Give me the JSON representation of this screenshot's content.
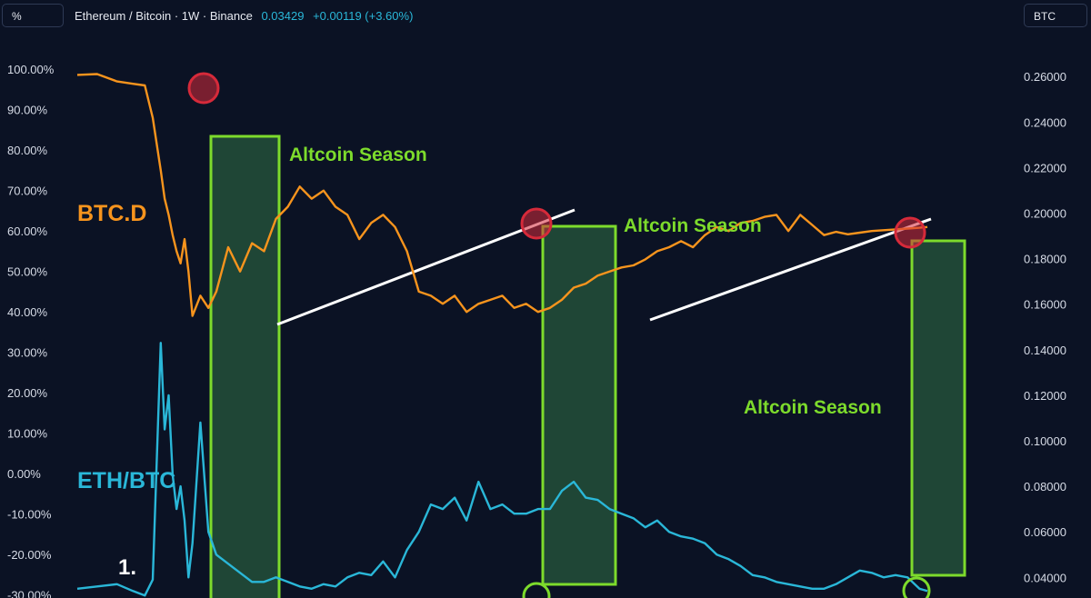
{
  "header": {
    "left_scale_button": "%",
    "right_scale_button": "BTC",
    "symbol_title": "Ethereum / Bitcoin · 1W · Binance",
    "last_price": "0.03429",
    "change": "+0.00119 (+3.60%)"
  },
  "colors": {
    "background": "#0b1224",
    "btc_d": "#f7941d",
    "eth_btc": "#2ab7d8",
    "season_fill": "#23503a",
    "season_border": "#7ddb2c",
    "marker_red": "#d62a3a",
    "marker_green": "#7ddb2c",
    "trendline": "#ffffff",
    "label_green": "#7ddb2c"
  },
  "annotations": {
    "btc_d_label": "BTC.D",
    "eth_btc_label": "ETH/BTC",
    "altcoin_season_1": "Altcoin Season",
    "altcoin_season_2": "Altcoin Season",
    "altcoin_season_3": "Altcoin Season",
    "point_label": "1."
  },
  "chart_data": {
    "type": "line",
    "left_axis": {
      "ticks": [
        "100.00%",
        "90.00%",
        "80.00%",
        "70.00%",
        "60.00%",
        "50.00%",
        "40.00%",
        "30.00%",
        "20.00%",
        "10.00%",
        "0.00%",
        "-10.00%",
        "-20.00%",
        "-30.00%"
      ],
      "range": [
        -30,
        100
      ]
    },
    "right_axis": {
      "ticks": [
        "0.26000",
        "0.24000",
        "0.22000",
        "0.20000",
        "0.18000",
        "0.16000",
        "0.14000",
        "0.12000",
        "0.10000",
        "0.08000",
        "0.06000",
        "0.04000"
      ],
      "range": [
        0.04,
        0.26
      ]
    },
    "series": [
      {
        "name": "BTC.D",
        "axis": "left",
        "x": [
          0,
          5,
          10,
          14,
          17,
          19,
          21,
          22,
          23,
          24,
          25,
          26,
          27,
          28,
          29,
          31,
          33,
          35,
          38,
          41,
          44,
          47,
          50,
          53,
          56,
          59,
          62,
          65,
          68,
          71,
          74,
          77,
          80,
          83,
          86,
          89,
          92,
          95,
          98,
          101,
          104,
          107,
          110,
          113,
          116,
          119,
          122,
          125,
          128,
          131,
          134,
          137,
          140,
          143,
          146,
          149,
          152,
          155,
          158,
          161,
          164,
          167,
          170,
          173,
          176,
          179,
          182,
          185,
          188,
          191,
          194,
          197,
          200,
          203,
          206,
          209,
          212,
          214
        ],
        "values": [
          98.6,
          98.8,
          97.0,
          96.4,
          96.0,
          88.0,
          75.0,
          68.0,
          64.0,
          59.0,
          55.0,
          52.0,
          58.0,
          50.0,
          39.0,
          44.0,
          41.0,
          45.0,
          56.0,
          50.0,
          57.0,
          55.0,
          63.0,
          66.0,
          71.0,
          68.0,
          70.0,
          66.0,
          64.0,
          58.0,
          62.0,
          64.0,
          61.0,
          55.0,
          45.0,
          44.0,
          42.0,
          44.0,
          40.0,
          42.0,
          43.0,
          44.0,
          41.0,
          42.0,
          40.0,
          41.0,
          43.0,
          46.0,
          47.0,
          49.0,
          50.0,
          51.0,
          51.5,
          53.0,
          55.0,
          56.0,
          57.5,
          56.0,
          59.0,
          61.0,
          60.0,
          62.0,
          62.5,
          63.5,
          64.0,
          60.0,
          64.0,
          61.5,
          59.0,
          59.8,
          59.2,
          59.6,
          60.0,
          60.2,
          60.4,
          60.6,
          60.8,
          61.0
        ]
      },
      {
        "name": "ETH/BTC",
        "axis": "right",
        "x": [
          0,
          5,
          10,
          14,
          17,
          19,
          21,
          22,
          23,
          24,
          25,
          26,
          27,
          28,
          29,
          31,
          33,
          35,
          38,
          41,
          44,
          47,
          50,
          53,
          56,
          59,
          62,
          65,
          68,
          71,
          74,
          77,
          80,
          83,
          86,
          89,
          92,
          95,
          98,
          101,
          104,
          107,
          110,
          113,
          116,
          119,
          122,
          125,
          128,
          131,
          134,
          137,
          140,
          143,
          146,
          149,
          152,
          155,
          158,
          161,
          164,
          167,
          170,
          173,
          176,
          179,
          182,
          185,
          188,
          191,
          194,
          197,
          200,
          203,
          206,
          209,
          212,
          214
        ],
        "values": [
          0.035,
          0.036,
          0.037,
          0.034,
          0.032,
          0.039,
          0.143,
          0.105,
          0.12,
          0.085,
          0.07,
          0.08,
          0.065,
          0.04,
          0.055,
          0.108,
          0.06,
          0.05,
          0.046,
          0.042,
          0.038,
          0.038,
          0.04,
          0.038,
          0.036,
          0.035,
          0.037,
          0.036,
          0.04,
          0.042,
          0.041,
          0.047,
          0.04,
          0.052,
          0.06,
          0.072,
          0.07,
          0.075,
          0.065,
          0.082,
          0.07,
          0.072,
          0.068,
          0.068,
          0.07,
          0.07,
          0.078,
          0.082,
          0.075,
          0.074,
          0.07,
          0.068,
          0.066,
          0.062,
          0.065,
          0.06,
          0.058,
          0.057,
          0.055,
          0.05,
          0.048,
          0.045,
          0.041,
          0.04,
          0.038,
          0.037,
          0.036,
          0.035,
          0.035,
          0.037,
          0.04,
          0.043,
          0.042,
          0.04,
          0.041,
          0.04,
          0.035,
          0.034
        ]
      }
    ],
    "grid": false,
    "legend": "none"
  }
}
